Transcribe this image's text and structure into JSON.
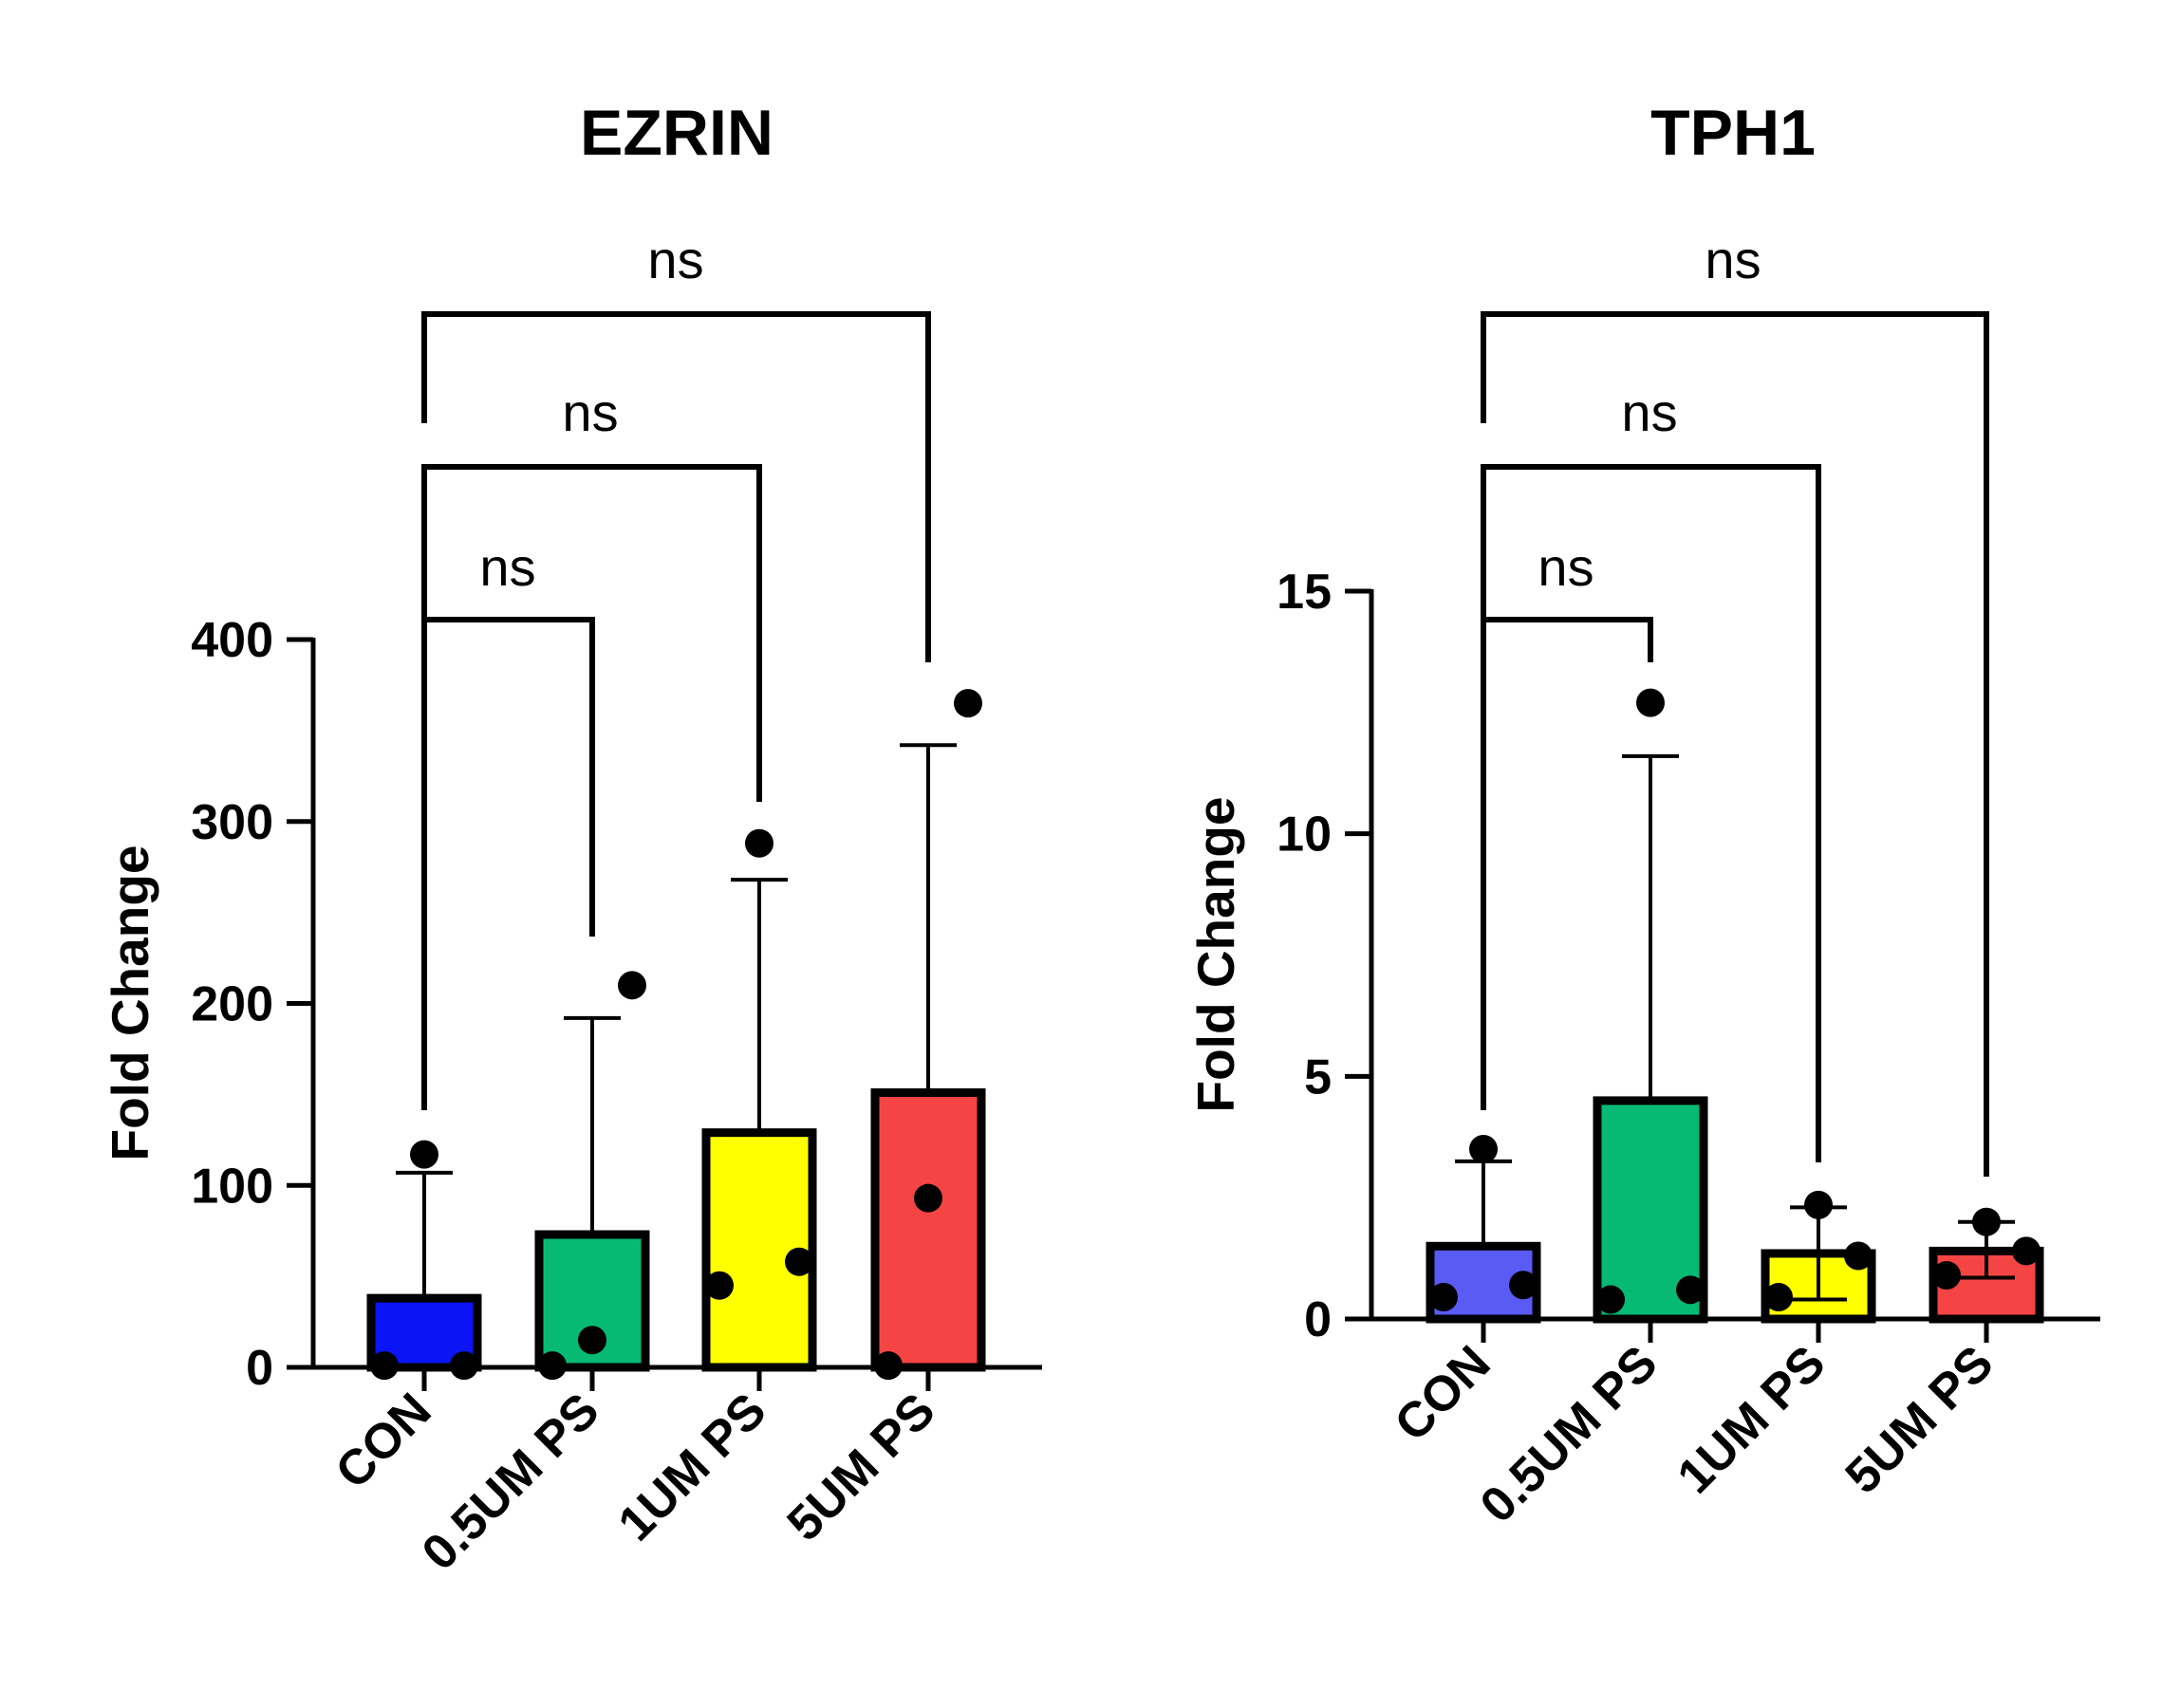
{
  "chart_data": [
    {
      "type": "bar",
      "title": "EZRIN",
      "ylabel": "Fold Change",
      "xlabel": "",
      "ylim": [
        0,
        400
      ],
      "yticks": [
        "0",
        "100",
        "200",
        "300",
        "400"
      ],
      "categories": [
        "CON",
        "0.5UM PS",
        "1UM PS",
        "5UM PS"
      ],
      "values": [
        38,
        73,
        129,
        151
      ],
      "error_upper": [
        107,
        192,
        268,
        342
      ],
      "points": [
        [
          1,
          117,
          1
        ],
        [
          1,
          15,
          210
        ],
        [
          45,
          288,
          58
        ],
        [
          1,
          93,
          365
        ]
      ],
      "colors": [
        "#0a14f5",
        "#06ba73",
        "#ffff00",
        "#f54444"
      ],
      "comparisons": [
        {
          "from": "CON",
          "to": "0.5UM PS",
          "label": "ns"
        },
        {
          "from": "CON",
          "to": "1UM PS",
          "label": "ns"
        },
        {
          "from": "CON",
          "to": "5UM PS",
          "label": "ns"
        }
      ]
    },
    {
      "type": "bar",
      "title": "TPH1",
      "ylabel": "Fold Change",
      "xlabel": "",
      "ylim": [
        0,
        15
      ],
      "yticks": [
        "0",
        "5",
        "10",
        "15"
      ],
      "categories": [
        "CON",
        "0.5UM PS",
        "1UM PS",
        "5UM PS"
      ],
      "values": [
        1.5,
        4.5,
        1.35,
        1.4
      ],
      "error_upper": [
        3.25,
        11.6,
        2.3,
        2.0
      ],
      "error_lower": [
        1.5,
        4.5,
        0.4,
        0.85
      ],
      "points": [
        [
          0.45,
          3.5,
          0.7
        ],
        [
          0.4,
          12.7,
          0.6
        ],
        [
          0.45,
          2.35,
          1.3
        ],
        [
          0.9,
          2.0,
          1.4
        ]
      ],
      "colors": [
        "#5a5af5",
        "#06ba73",
        "#ffff00",
        "#f54444"
      ],
      "comparisons": [
        {
          "from": "CON",
          "to": "0.5UM PS",
          "label": "ns"
        },
        {
          "from": "CON",
          "to": "1UM PS",
          "label": "ns"
        },
        {
          "from": "CON",
          "to": "5UM PS",
          "label": "ns"
        }
      ]
    }
  ]
}
